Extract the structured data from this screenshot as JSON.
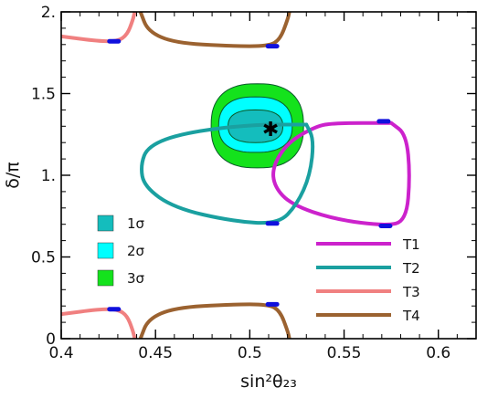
{
  "chart_data": {
    "type": "contour",
    "xlabel": "sin²θ₂₃",
    "ylabel": "δ/π",
    "xlim": [
      0.4,
      0.62
    ],
    "ylim": [
      0,
      2
    ],
    "x_ticks": [
      "0.4",
      "0.45",
      "0.5",
      "0.55",
      "0.6"
    ],
    "x_tick_values": [
      0.4,
      0.45,
      0.5,
      0.55,
      0.6
    ],
    "y_ticks": [
      "0",
      "0.5",
      "1.",
      "1.5",
      "2."
    ],
    "y_tick_values": [
      0,
      0.5,
      1.0,
      1.5,
      2.0
    ],
    "best_fit": {
      "x": 0.511,
      "y": 1.28,
      "marker": "star"
    },
    "confidence_regions": [
      {
        "name": "3σ",
        "color": "#14e21c",
        "center": [
          0.504,
          1.3
        ],
        "rx": 0.0245,
        "ry_up": 0.26,
        "ry_down": 0.255
      },
      {
        "name": "2σ",
        "color": "#00ffff",
        "center": [
          0.503,
          1.3
        ],
        "rx": 0.0195,
        "ry_up": 0.18,
        "ry_down": 0.16
      },
      {
        "name": "1σ",
        "color": "#14bdbd",
        "center": [
          0.503,
          1.3
        ],
        "rx": 0.0145,
        "ry_up": 0.1,
        "ry_down": 0.1
      }
    ],
    "legend_regions": [
      {
        "label": "1σ",
        "color": "#14bdbd"
      },
      {
        "label": "2σ",
        "color": "#00ffff"
      },
      {
        "label": "3σ",
        "color": "#14e21c"
      }
    ],
    "series": [
      {
        "name": "T1",
        "color": "#cc22cc",
        "highlight": "#1010dd",
        "points": [
          [
            0.575,
            1.32
          ],
          [
            0.545,
            1.32
          ],
          [
            0.535,
            1.3
          ],
          [
            0.52,
            1.2
          ],
          [
            0.512,
            1.05
          ],
          [
            0.513,
            0.93
          ],
          [
            0.522,
            0.82
          ],
          [
            0.545,
            0.73
          ],
          [
            0.572,
            0.69
          ],
          [
            0.583,
            0.72
          ],
          [
            0.585,
            1.0
          ],
          [
            0.583,
            1.25
          ],
          [
            0.575,
            1.32
          ]
        ],
        "highlights": [
          [
            0.571,
            1.33
          ],
          [
            0.572,
            0.69
          ]
        ]
      },
      {
        "name": "T2",
        "color": "#1aa0a0",
        "highlight": "#1010dd",
        "points": [
          [
            0.53,
            1.31
          ],
          [
            0.5,
            1.31
          ],
          [
            0.465,
            1.26
          ],
          [
            0.446,
            1.18
          ],
          [
            0.442,
            1.06
          ],
          [
            0.444,
            0.93
          ],
          [
            0.46,
            0.8
          ],
          [
            0.49,
            0.72
          ],
          [
            0.515,
            0.7
          ],
          [
            0.525,
            0.82
          ],
          [
            0.532,
            1.0
          ],
          [
            0.534,
            1.22
          ],
          [
            0.53,
            1.31
          ]
        ],
        "highlights": [
          [
            0.512,
            0.705
          ]
        ]
      },
      {
        "name": "T3",
        "color": "#f08080",
        "highlight": "#1010dd",
        "segments": [
          [
            [
              0.4,
              1.85
            ],
            [
              0.42,
              1.82
            ],
            [
              0.43,
              1.82
            ],
            [
              0.435,
              1.86
            ],
            [
              0.438,
              1.95
            ],
            [
              0.439,
              2.0
            ]
          ],
          [
            [
              0.4,
              0.15
            ],
            [
              0.42,
              0.18
            ],
            [
              0.43,
              0.18
            ],
            [
              0.435,
              0.14
            ],
            [
              0.438,
              0.05
            ],
            [
              0.439,
              0.0
            ]
          ]
        ],
        "highlights": [
          [
            0.428,
            1.82
          ],
          [
            0.428,
            0.18
          ]
        ]
      },
      {
        "name": "T4",
        "color": "#9b6230",
        "highlight": "#1010dd",
        "segments": [
          [
            [
              0.442,
              2.0
            ],
            [
              0.446,
              1.88
            ],
            [
              0.46,
              1.81
            ],
            [
              0.49,
              1.79
            ],
            [
              0.51,
              1.79
            ],
            [
              0.516,
              1.83
            ],
            [
              0.52,
              1.95
            ],
            [
              0.521,
              2.0
            ]
          ],
          [
            [
              0.442,
              0.0
            ],
            [
              0.446,
              0.12
            ],
            [
              0.46,
              0.19
            ],
            [
              0.49,
              0.21
            ],
            [
              0.51,
              0.21
            ],
            [
              0.516,
              0.17
            ],
            [
              0.52,
              0.05
            ],
            [
              0.521,
              0.0
            ]
          ]
        ],
        "highlights": [
          [
            0.512,
            1.79
          ],
          [
            0.512,
            0.21
          ]
        ]
      }
    ],
    "legend_lines": [
      {
        "label": "T1",
        "color": "#cc22cc"
      },
      {
        "label": "T2",
        "color": "#1aa0a0"
      },
      {
        "label": "T3",
        "color": "#f08080"
      },
      {
        "label": "T4",
        "color": "#9b6230"
      }
    ]
  }
}
